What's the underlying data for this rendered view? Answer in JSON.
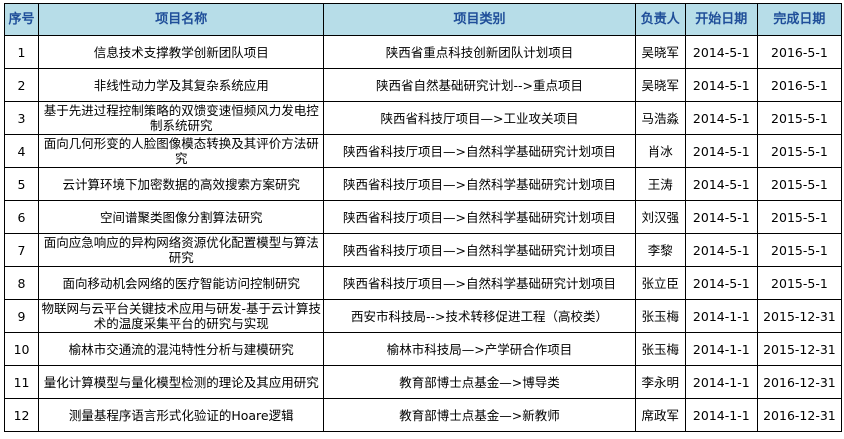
{
  "colors": {
    "header_bg": "#b7dde8",
    "header_text": "#1f4e99"
  },
  "headers": [
    "序号",
    "项目名称",
    "项目类别",
    "负责人",
    "开始日期",
    "完成日期"
  ],
  "rows": [
    [
      "1",
      "信息技术支撑教学创新团队项目",
      "陕西省重点科技创新团队计划项目",
      "吴晓军",
      "2014-5-1",
      "2016-5-1"
    ],
    [
      "2",
      "非线性动力学及其复杂系统应用",
      "陕西省自然基础研究计划-->重点项目",
      "吴晓军",
      "2014-5-1",
      "2016-5-1"
    ],
    [
      "3",
      "基于先进过程控制策略的双馈变速恒频风力发电控制系统研究",
      "陕西省科技厅项目—>工业攻关项目",
      "马浩淼",
      "2014-5-1",
      "2015-5-1"
    ],
    [
      "4",
      "面向几何形变的人脸图像模态转换及其评价方法研究",
      "陕西省科技厅项目—>自然科学基础研究计划项目",
      "肖冰",
      "2014-5-1",
      "2015-5-1"
    ],
    [
      "5",
      "云计算环境下加密数据的高效搜索方案研究",
      "陕西省科技厅项目—>自然科学基础研究计划项目",
      "王涛",
      "2014-5-1",
      "2015-5-1"
    ],
    [
      "6",
      "空间谱聚类图像分割算法研究",
      "陕西省科技厅项目—>自然科学基础研究计划项目",
      "刘汉强",
      "2014-5-1",
      "2015-5-1"
    ],
    [
      "7",
      "面向应急响应的异构网络资源优化配置模型与算法研究",
      "陕西省科技厅项目—>自然科学基础研究计划项目",
      "李黎",
      "2014-5-1",
      "2015-5-1"
    ],
    [
      "8",
      "面向移动机会网络的医疗智能访问控制研究",
      "陕西省科技厅项目—>自然科学基础研究计划项目",
      "张立臣",
      "2014-5-1",
      "2015-5-1"
    ],
    [
      "9",
      "物联网与云平台关键技术应用与研发-基于云计算技术的温度采集平台的研究与实现",
      "西安市科技局-->技术转移促进工程（高校类）",
      "张玉梅",
      "2014-1-1",
      "2015-12-31"
    ],
    [
      "10",
      "榆林市交通流的混沌特性分析与建模研究",
      "榆林市科技局—>产学研合作项目",
      "张玉梅",
      "2014-1-1",
      "2015-12-31"
    ],
    [
      "11",
      "量化计算模型与量化模型检测的理论及其应用研究",
      "教育部博士点基金—>博导类",
      "李永明",
      "2014-1-1",
      "2016-12-31"
    ],
    [
      "12",
      "测量基程序语言形式化验证的Hoare逻辑",
      "教育部博士点基金—>新教师",
      "席政军",
      "2014-1-1",
      "2016-12-31"
    ]
  ]
}
